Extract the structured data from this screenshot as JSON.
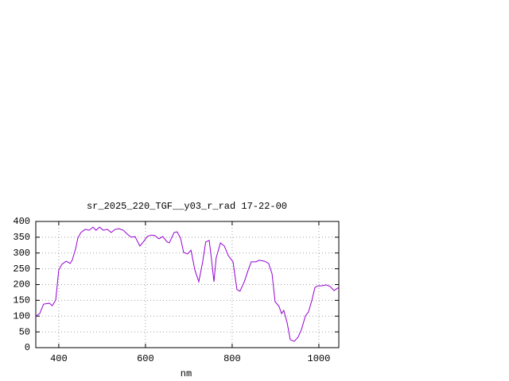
{
  "chart_data": {
    "type": "line",
    "title": "sr_2025_220_TGF__y03_r_rad 17-22-00",
    "x_label": "nm",
    "x": [
      347,
      356,
      365,
      378,
      385,
      393,
      400,
      407,
      417,
      426,
      431,
      439,
      444,
      451,
      461,
      470,
      479,
      486,
      494,
      503,
      512,
      521,
      530,
      539,
      549,
      558,
      567,
      576,
      587,
      595,
      604,
      613,
      622,
      631,
      640,
      650,
      655,
      666,
      673,
      681,
      688,
      697,
      705,
      714,
      723,
      732,
      739,
      747,
      752,
      758,
      763,
      773,
      782,
      791,
      802,
      811,
      818,
      828,
      837,
      844,
      855,
      862,
      875,
      884,
      892,
      899,
      908,
      914,
      919,
      927,
      934,
      943,
      952,
      960,
      969,
      976,
      984,
      991,
      998,
      1006,
      1017,
      1026,
      1035,
      1046
    ],
    "series": [
      {
        "color": "#9400d3",
        "values": [
          100,
          108,
          138,
          141,
          133,
          151,
          246,
          264,
          274,
          267,
          277,
          314,
          347,
          365,
          375,
          372,
          382,
          372,
          382,
          372,
          375,
          365,
          375,
          377,
          372,
          360,
          350,
          352,
          322,
          335,
          352,
          357,
          355,
          345,
          352,
          335,
          332,
          365,
          367,
          347,
          302,
          297,
          309,
          246,
          209,
          272,
          335,
          340,
          284,
          209,
          284,
          332,
          322,
          292,
          272,
          184,
          179,
          209,
          246,
          272,
          272,
          277,
          274,
          267,
          234,
          146,
          131,
          108,
          118,
          78,
          25,
          20,
          33,
          58,
          101,
          113,
          151,
          191,
          196,
          196,
          199,
          194,
          181,
          191
        ]
      }
    ],
    "xlim": [
      347,
      1046
    ],
    "xticks": [
      400,
      600,
      800,
      1000
    ],
    "ylim": [
      0,
      400
    ],
    "yticks": [
      0,
      50,
      100,
      150,
      200,
      250,
      300,
      350,
      400
    ],
    "grid": true
  }
}
